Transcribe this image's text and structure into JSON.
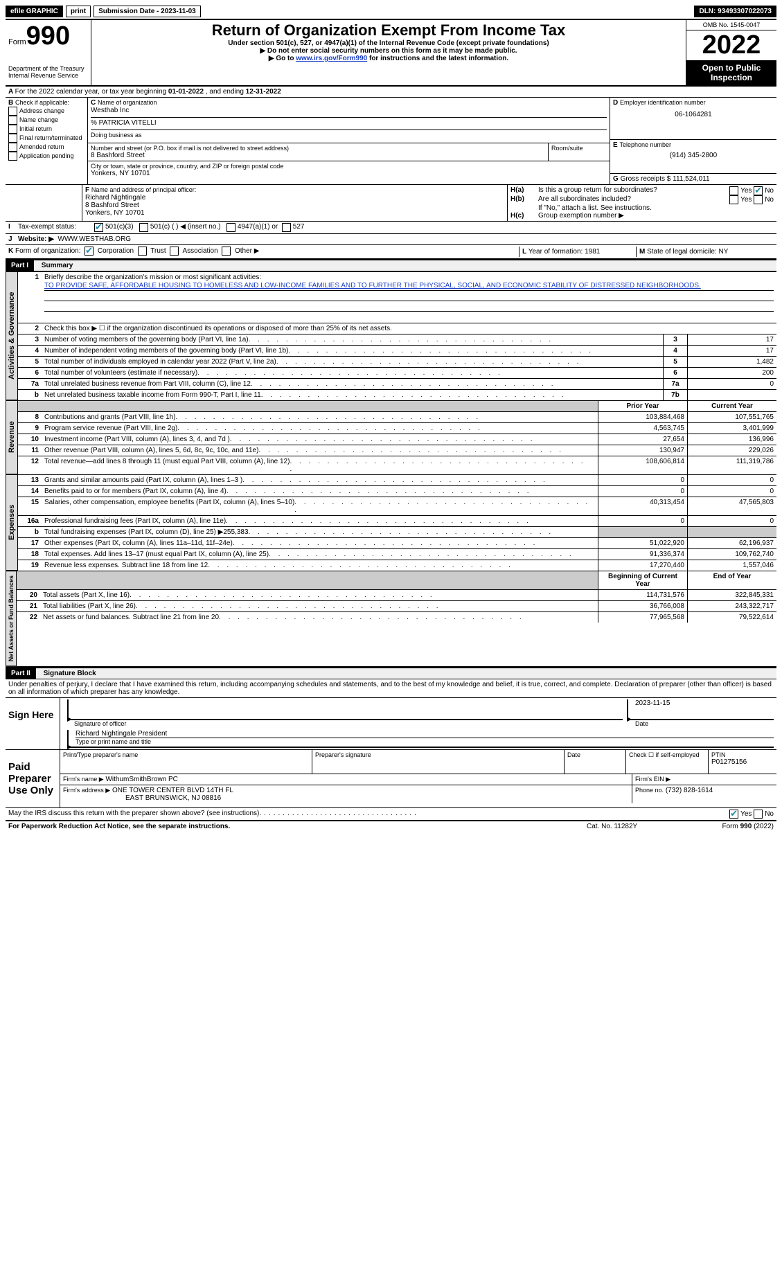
{
  "topbar": {
    "efile": "efile GRAPHIC",
    "print": "print",
    "sub_label": "Submission Date - 2023-11-03",
    "dln": "DLN: 93493307022073"
  },
  "header": {
    "form": "Form",
    "n990": "990",
    "dept": "Department of the Treasury",
    "irs": "Internal Revenue Service",
    "title": "Return of Organization Exempt From Income Tax",
    "sub1": "Under section 501(c), 527, or 4947(a)(1) of the Internal Revenue Code (except private foundations)",
    "sub2": "▶ Do not enter social security numbers on this form as it may be made public.",
    "sub3_a": "▶ Go to ",
    "sub3_link": "www.irs.gov/Form990",
    "sub3_b": " for instructions and the latest information.",
    "omb": "OMB No. 1545-0047",
    "year": "2022",
    "open": "Open to Public Inspection"
  },
  "A": {
    "text": "For the 2022 calendar year, or tax year beginning ",
    "begin": "01-01-2022",
    "mid": " , and ending ",
    "end": "12-31-2022"
  },
  "B": {
    "label": "Check if applicable:",
    "items": [
      "Address change",
      "Name change",
      "Initial return",
      "Final return/terminated",
      "Amended return",
      "Application pending"
    ]
  },
  "C": {
    "name_lbl": "Name of organization",
    "name": "Westhab Inc",
    "care": "% PATRICIA VITELLI",
    "dba_lbl": "Doing business as",
    "addr_lbl": "Number and street (or P.O. box if mail is not delivered to street address)",
    "room_lbl": "Room/suite",
    "addr": "8 Bashford Street",
    "city_lbl": "City or town, state or province, country, and ZIP or foreign postal code",
    "city": "Yonkers, NY  10701"
  },
  "D": {
    "lbl": "Employer identification number",
    "val": "06-1064281"
  },
  "E": {
    "lbl": "Telephone number",
    "val": "(914) 345-2800"
  },
  "G": {
    "lbl": "Gross receipts $",
    "val": "111,524,011"
  },
  "F": {
    "lbl": "Name and address of principal officer:",
    "name": "Richard Nightingale",
    "addr": "8 Bashford Street",
    "city": "Yonkers, NY  10701"
  },
  "H": {
    "a": "Is this a group return for subordinates?",
    "b": "Are all subordinates included?",
    "b_note": "If \"No,\" attach a list. See instructions.",
    "c": "Group exemption number ▶",
    "yes": "Yes",
    "no": "No"
  },
  "I": {
    "lbl": "Tax-exempt status:",
    "o1": "501(c)(3)",
    "o2": "501(c) (  ) ◀ (insert no.)",
    "o3": "4947(a)(1) or",
    "o4": "527"
  },
  "J": {
    "lbl": "Website: ▶",
    "val": "WWW.WESTHAB.ORG"
  },
  "K": {
    "lbl": "Form of organization:",
    "o1": "Corporation",
    "o2": "Trust",
    "o3": "Association",
    "o4": "Other ▶"
  },
  "L": {
    "lbl": "Year of formation:",
    "val": "1981"
  },
  "M": {
    "lbl": "State of legal domicile:",
    "val": "NY"
  },
  "part1": {
    "hdr": "Part I",
    "title": "Summary"
  },
  "summary": {
    "q1": "Briefly describe the organization's mission or most significant activities:",
    "mission": "TO PROVIDE SAFE, AFFORDABLE HOUSING TO HOMELESS AND LOW-INCOME FAMILIES AND TO FURTHER THE PHYSICAL, SOCIAL, AND ECONOMIC STABILITY OF DISTRESSED NEIGHBORHOODS.",
    "q2": "Check this box ▶ ☐ if the organization discontinued its operations or disposed of more than 25% of its net assets.",
    "rows_ag": [
      {
        "n": "3",
        "t": "Number of voting members of the governing body (Part VI, line 1a)",
        "b": "3",
        "v": "17"
      },
      {
        "n": "4",
        "t": "Number of independent voting members of the governing body (Part VI, line 1b)",
        "b": "4",
        "v": "17"
      },
      {
        "n": "5",
        "t": "Total number of individuals employed in calendar year 2022 (Part V, line 2a)",
        "b": "5",
        "v": "1,482"
      },
      {
        "n": "6",
        "t": "Total number of volunteers (estimate if necessary)",
        "b": "6",
        "v": "200"
      },
      {
        "n": "7a",
        "t": "Total unrelated business revenue from Part VIII, column (C), line 12",
        "b": "7a",
        "v": "0"
      },
      {
        "n": "b",
        "t": "Net unrelated business taxable income from Form 990-T, Part I, line 11",
        "b": "7b",
        "v": ""
      }
    ],
    "hdr_prior": "Prior Year",
    "hdr_curr": "Current Year",
    "rows_rev": [
      {
        "n": "8",
        "t": "Contributions and grants (Part VIII, line 1h)",
        "p": "103,884,468",
        "c": "107,551,765"
      },
      {
        "n": "9",
        "t": "Program service revenue (Part VIII, line 2g)",
        "p": "4,563,745",
        "c": "3,401,999"
      },
      {
        "n": "10",
        "t": "Investment income (Part VIII, column (A), lines 3, 4, and 7d )",
        "p": "27,654",
        "c": "136,996"
      },
      {
        "n": "11",
        "t": "Other revenue (Part VIII, column (A), lines 5, 6d, 8c, 9c, 10c, and 11e)",
        "p": "130,947",
        "c": "229,026"
      },
      {
        "n": "12",
        "t": "Total revenue—add lines 8 through 11 (must equal Part VIII, column (A), line 12)",
        "p": "108,606,814",
        "c": "111,319,786"
      }
    ],
    "rows_exp": [
      {
        "n": "13",
        "t": "Grants and similar amounts paid (Part IX, column (A), lines 1–3 )",
        "p": "0",
        "c": "0"
      },
      {
        "n": "14",
        "t": "Benefits paid to or for members (Part IX, column (A), line 4)",
        "p": "0",
        "c": "0"
      },
      {
        "n": "15",
        "t": "Salaries, other compensation, employee benefits (Part IX, column (A), lines 5–10)",
        "p": "40,313,454",
        "c": "47,565,803"
      },
      {
        "n": "16a",
        "t": "Professional fundraising fees (Part IX, column (A), line 11e)",
        "p": "0",
        "c": "0"
      },
      {
        "n": "b",
        "t": "Total fundraising expenses (Part IX, column (D), line 25) ▶255,383",
        "p": "",
        "c": "",
        "shade": true
      },
      {
        "n": "17",
        "t": "Other expenses (Part IX, column (A), lines 11a–11d, 11f–24e)",
        "p": "51,022,920",
        "c": "62,196,937"
      },
      {
        "n": "18",
        "t": "Total expenses. Add lines 13–17 (must equal Part IX, column (A), line 25)",
        "p": "91,336,374",
        "c": "109,762,740"
      },
      {
        "n": "19",
        "t": "Revenue less expenses. Subtract line 18 from line 12",
        "p": "17,270,440",
        "c": "1,557,046"
      }
    ],
    "hdr_boy": "Beginning of Current Year",
    "hdr_eoy": "End of Year",
    "rows_na": [
      {
        "n": "20",
        "t": "Total assets (Part X, line 16)",
        "p": "114,731,576",
        "c": "322,845,331"
      },
      {
        "n": "21",
        "t": "Total liabilities (Part X, line 26)",
        "p": "36,766,008",
        "c": "243,322,717"
      },
      {
        "n": "22",
        "t": "Net assets or fund balances. Subtract line 21 from line 20",
        "p": "77,965,568",
        "c": "79,522,614"
      }
    ],
    "vtabs": [
      "Activities & Governance",
      "Revenue",
      "Expenses",
      "Net Assets or Fund Balances"
    ]
  },
  "part2": {
    "hdr": "Part II",
    "title": "Signature Block"
  },
  "sig": {
    "decl": "Under penalties of perjury, I declare that I have examined this return, including accompanying schedules and statements, and to the best of my knowledge and belief, it is true, correct, and complete. Declaration of preparer (other than officer) is based on all information of which preparer has any knowledge.",
    "here": "Sign Here",
    "sig_off": "Signature of officer",
    "date": "Date",
    "date_val": "2023-11-15",
    "name": "Richard Nightingale  President",
    "name_lbl": "Type or print name and title",
    "paid": "Paid Preparer Use Only",
    "prep_name_lbl": "Print/Type preparer's name",
    "prep_sig_lbl": "Preparer's signature",
    "chk_self": "Check ☐ if self-employed",
    "ptin_lbl": "PTIN",
    "ptin": "P01275156",
    "firm_lbl": "Firm's name    ▶",
    "firm": "WithumSmithBrown PC",
    "ein_lbl": "Firm's EIN ▶",
    "addr_lbl": "Firm's address ▶",
    "addr1": "ONE TOWER CENTER BLVD 14TH FL",
    "addr2": "EAST BRUNSWICK, NJ  08816",
    "phone_lbl": "Phone no.",
    "phone": "(732) 828-1614",
    "discuss": "May the IRS discuss this return with the preparer shown above? (see instructions)"
  },
  "footer": {
    "pra": "For Paperwork Reduction Act Notice, see the separate instructions.",
    "cat": "Cat. No. 11282Y",
    "form": "Form 990 (2022)"
  }
}
